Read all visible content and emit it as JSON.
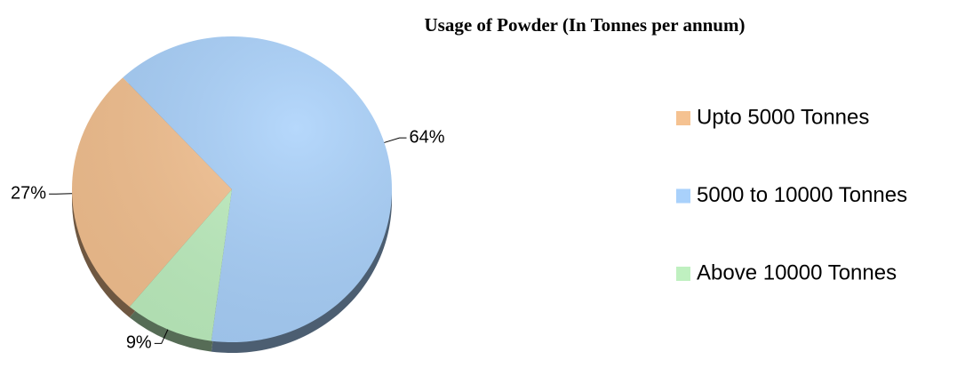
{
  "chart_data": {
    "type": "pie",
    "title": "Usage of Powder  (In Tonnes per annum)",
    "categories": [
      "Upto 5000 Tonnes",
      "5000 to 10000 Tonnes",
      "Above 10000 Tonnes"
    ],
    "values": [
      27,
      64,
      9
    ],
    "value_labels": [
      "27%",
      "64%",
      "9%"
    ],
    "colors": [
      "#f5c291",
      "#a9d1fb",
      "#bff0c0"
    ],
    "legend": "right"
  }
}
